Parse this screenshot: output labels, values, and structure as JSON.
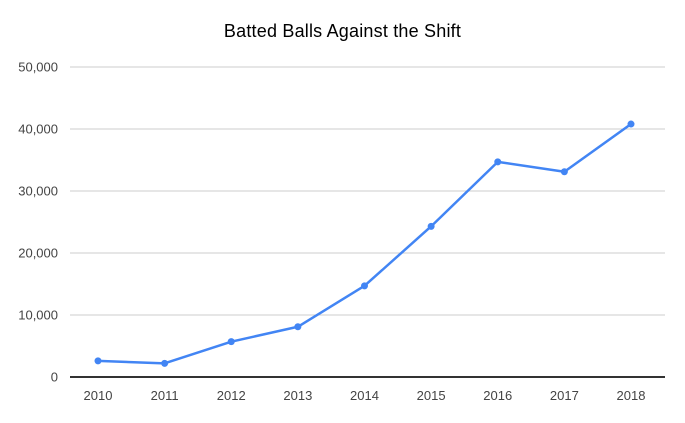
{
  "chart_data": {
    "type": "line",
    "title": "Batted Balls Against the Shift",
    "categories": [
      "2010",
      "2011",
      "2012",
      "2013",
      "2014",
      "2015",
      "2016",
      "2017",
      "2018"
    ],
    "series": [
      {
        "name": "Batted Balls Against the Shift",
        "values": [
          2600,
          2200,
          5700,
          8100,
          14700,
          24300,
          34700,
          33100,
          40800
        ]
      }
    ],
    "xlabel": "",
    "ylabel": "",
    "ylim": [
      0,
      50000
    ],
    "ytick_step": 10000,
    "ytick_labels": [
      "0",
      "10,000",
      "20,000",
      "30,000",
      "40,000",
      "50,000"
    ],
    "grid": "horizontal-only",
    "legend": "none",
    "colors": {
      "line": "#4285f4",
      "point": "#4285f4",
      "gridline": "#cccccc",
      "axis_line": "#333333",
      "tick_label": "#444444",
      "title": "#000000",
      "background": "#ffffff"
    }
  }
}
